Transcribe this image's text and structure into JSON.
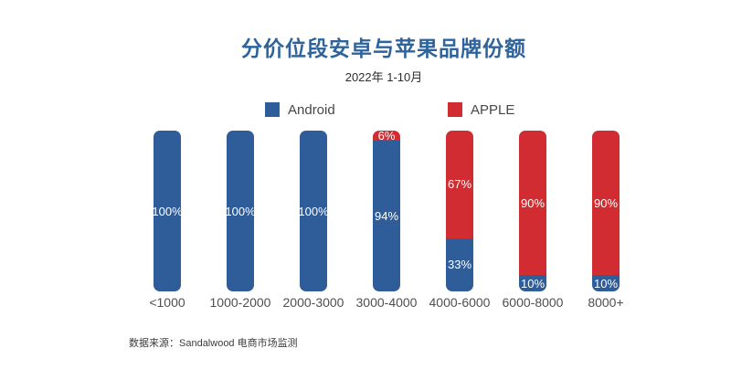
{
  "page": {
    "title": "分价位段安卓与苹果品牌份额",
    "subtitle": "2022年 1-10月",
    "footer": "数据来源：Sandalwood 电商市场监测"
  },
  "legend": {
    "items": [
      {
        "label": "Android",
        "color": "#2e5d99"
      },
      {
        "label": "APPLE",
        "color": "#d02c31"
      }
    ]
  },
  "chart_data": {
    "type": "bar",
    "stacked": true,
    "orientation": "vertical",
    "unit": "percent",
    "title": "分价位段安卓与苹果品牌份额",
    "subtitle": "2022年 1-10月",
    "categories": [
      "<1000",
      "1000-2000",
      "2000-3000",
      "3000-4000",
      "4000-6000",
      "6000-8000",
      "8000+"
    ],
    "series": [
      {
        "name": "Android",
        "color": "#2e5d99",
        "values": [
          100,
          100,
          100,
          94,
          33,
          10,
          10
        ]
      },
      {
        "name": "APPLE",
        "color": "#d02c31",
        "values": [
          0,
          0,
          0,
          6,
          67,
          90,
          90
        ]
      }
    ],
    "value_labels": "percent inside segments",
    "ylim": [
      0,
      100
    ],
    "grid": false,
    "legend_position": "top",
    "source": "数据来源：Sandalwood 电商市场监测"
  }
}
